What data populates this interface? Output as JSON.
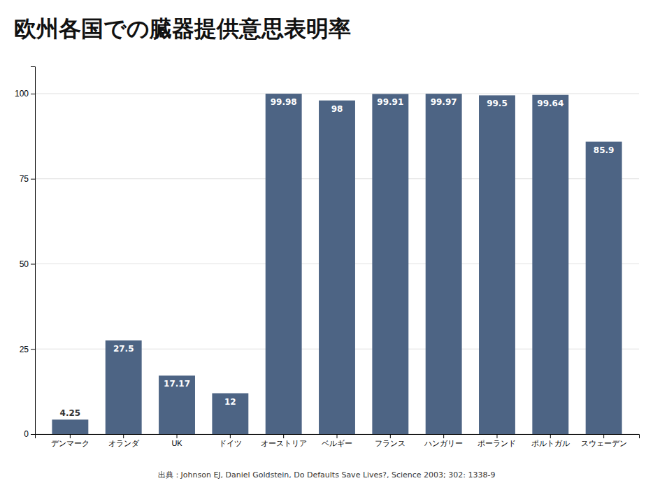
{
  "chart_data": {
    "type": "bar",
    "title": "欧州各国での臓器提供意思表明率",
    "categories": [
      "デンマーク",
      "オランダ",
      "UK",
      "ドイツ",
      "オーストリア",
      "ベルギー",
      "フランス",
      "ハンガリー",
      "ポーランド",
      "ポルトガル",
      "スウェーデン"
    ],
    "values": [
      4.25,
      27.5,
      17.17,
      12,
      99.98,
      98,
      99.91,
      99.97,
      99.5,
      99.64,
      85.9
    ],
    "color": "#4d6484",
    "ylim": [
      0,
      108
    ],
    "yticks": [
      0,
      25,
      50,
      75,
      100
    ],
    "grid": true,
    "data_labels": true,
    "source": "出典：Johnson EJ, Daniel Goldstein, Do Defaults Save Lives?, Science 2003; 302: 1338-9"
  }
}
